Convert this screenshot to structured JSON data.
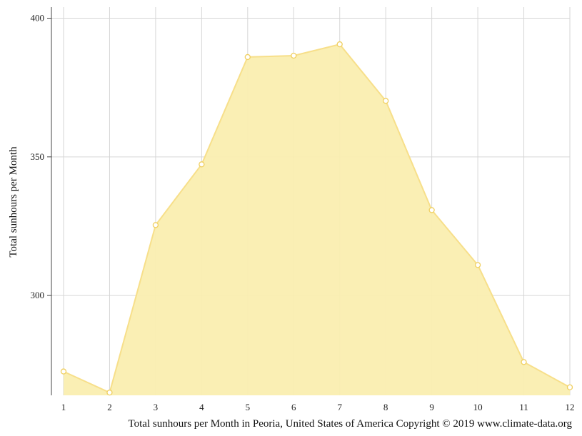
{
  "chart_data": {
    "type": "area",
    "x": [
      "1",
      "2",
      "3",
      "4",
      "5",
      "6",
      "7",
      "8",
      "9",
      "10",
      "11",
      "12"
    ],
    "values": [
      272.6,
      265,
      325.4,
      347.3,
      386,
      386.5,
      390.6,
      370.2,
      330.8,
      311,
      276,
      266.9
    ],
    "ylabel": "Total sunhours per Month",
    "xlabel": "Total sunhours per Month in Peoria, United States of America Copyright © 2019 www.climate-data.org",
    "ylim": [
      264,
      404
    ],
    "yticks": [
      "300",
      "350",
      "400"
    ],
    "grid": true,
    "colors": {
      "fill": "#faeeb0",
      "line": "#f7df8a",
      "marker_stroke": "#f0cf60",
      "grid": "#d6d6d6",
      "axis": "#444444"
    }
  }
}
